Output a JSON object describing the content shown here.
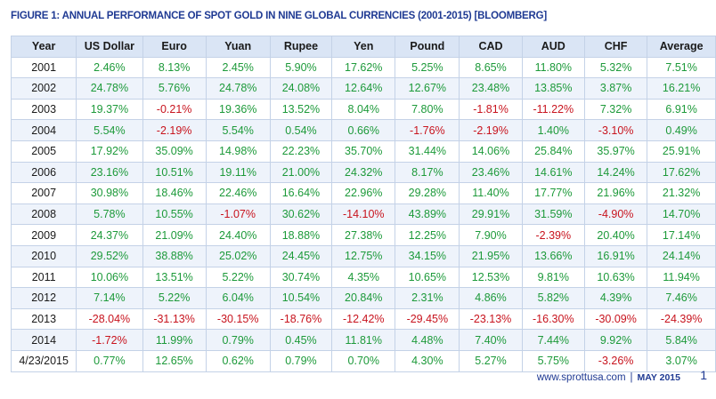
{
  "title": "FIGURE 1: ANNUAL PERFORMANCE OF SPOT GOLD IN NINE GLOBAL CURRENCIES (2001-2015) [BLOOMBERG]",
  "colors": {
    "positive": "#1d9a3a",
    "negative": "#c8141e",
    "header_bg": "#dae5f5",
    "title": "#1f3a93"
  },
  "table": {
    "columns": [
      "Year",
      "US Dollar",
      "Euro",
      "Yuan",
      "Rupee",
      "Yen",
      "Pound",
      "CAD",
      "AUD",
      "CHF",
      "Average"
    ],
    "rows": [
      [
        "2001",
        "2.46%",
        "8.13%",
        "2.45%",
        "5.90%",
        "17.62%",
        "5.25%",
        "8.65%",
        "11.80%",
        "5.32%",
        "7.51%"
      ],
      [
        "2002",
        "24.78%",
        "5.76%",
        "24.78%",
        "24.08%",
        "12.64%",
        "12.67%",
        "23.48%",
        "13.85%",
        "3.87%",
        "16.21%"
      ],
      [
        "2003",
        "19.37%",
        "-0.21%",
        "19.36%",
        "13.52%",
        "8.04%",
        "7.80%",
        "-1.81%",
        "-11.22%",
        "7.32%",
        "6.91%"
      ],
      [
        "2004",
        "5.54%",
        "-2.19%",
        "5.54%",
        "0.54%",
        "0.66%",
        "-1.76%",
        "-2.19%",
        "1.40%",
        "-3.10%",
        "0.49%"
      ],
      [
        "2005",
        "17.92%",
        "35.09%",
        "14.98%",
        "22.23%",
        "35.70%",
        "31.44%",
        "14.06%",
        "25.84%",
        "35.97%",
        "25.91%"
      ],
      [
        "2006",
        "23.16%",
        "10.51%",
        "19.11%",
        "21.00%",
        "24.32%",
        "8.17%",
        "23.46%",
        "14.61%",
        "14.24%",
        "17.62%"
      ],
      [
        "2007",
        "30.98%",
        "18.46%",
        "22.46%",
        "16.64%",
        "22.96%",
        "29.28%",
        "11.40%",
        "17.77%",
        "21.96%",
        "21.32%"
      ],
      [
        "2008",
        "5.78%",
        "10.55%",
        "-1.07%",
        "30.62%",
        "-14.10%",
        "43.89%",
        "29.91%",
        "31.59%",
        "-4.90%",
        "14.70%"
      ],
      [
        "2009",
        "24.37%",
        "21.09%",
        "24.40%",
        "18.88%",
        "27.38%",
        "12.25%",
        "7.90%",
        "-2.39%",
        "20.40%",
        "17.14%"
      ],
      [
        "2010",
        "29.52%",
        "38.88%",
        "25.02%",
        "24.45%",
        "12.75%",
        "34.15%",
        "21.95%",
        "13.66%",
        "16.91%",
        "24.14%"
      ],
      [
        "2011",
        "10.06%",
        "13.51%",
        "5.22%",
        "30.74%",
        "4.35%",
        "10.65%",
        "12.53%",
        "9.81%",
        "10.63%",
        "11.94%"
      ],
      [
        "2012",
        "7.14%",
        "5.22%",
        "6.04%",
        "10.54%",
        "20.84%",
        "2.31%",
        "4.86%",
        "5.82%",
        "4.39%",
        "7.46%"
      ],
      [
        "2013",
        "-28.04%",
        "-31.13%",
        "-30.15%",
        "-18.76%",
        "-12.42%",
        "-29.45%",
        "-23.13%",
        "-16.30%",
        "-30.09%",
        "-24.39%"
      ],
      [
        "2014",
        "-1.72%",
        "11.99%",
        "0.79%",
        "0.45%",
        "11.81%",
        "4.48%",
        "7.40%",
        "7.44%",
        "9.92%",
        "5.84%"
      ],
      [
        "4/23/2015",
        "0.77%",
        "12.65%",
        "0.62%",
        "0.79%",
        "0.70%",
        "4.30%",
        "5.27%",
        "5.75%",
        "-3.26%",
        "3.07%"
      ]
    ]
  },
  "footer": {
    "url": "www.sprottusa.com",
    "separator": "|",
    "date": "MAY 2015",
    "page_number": "1"
  }
}
